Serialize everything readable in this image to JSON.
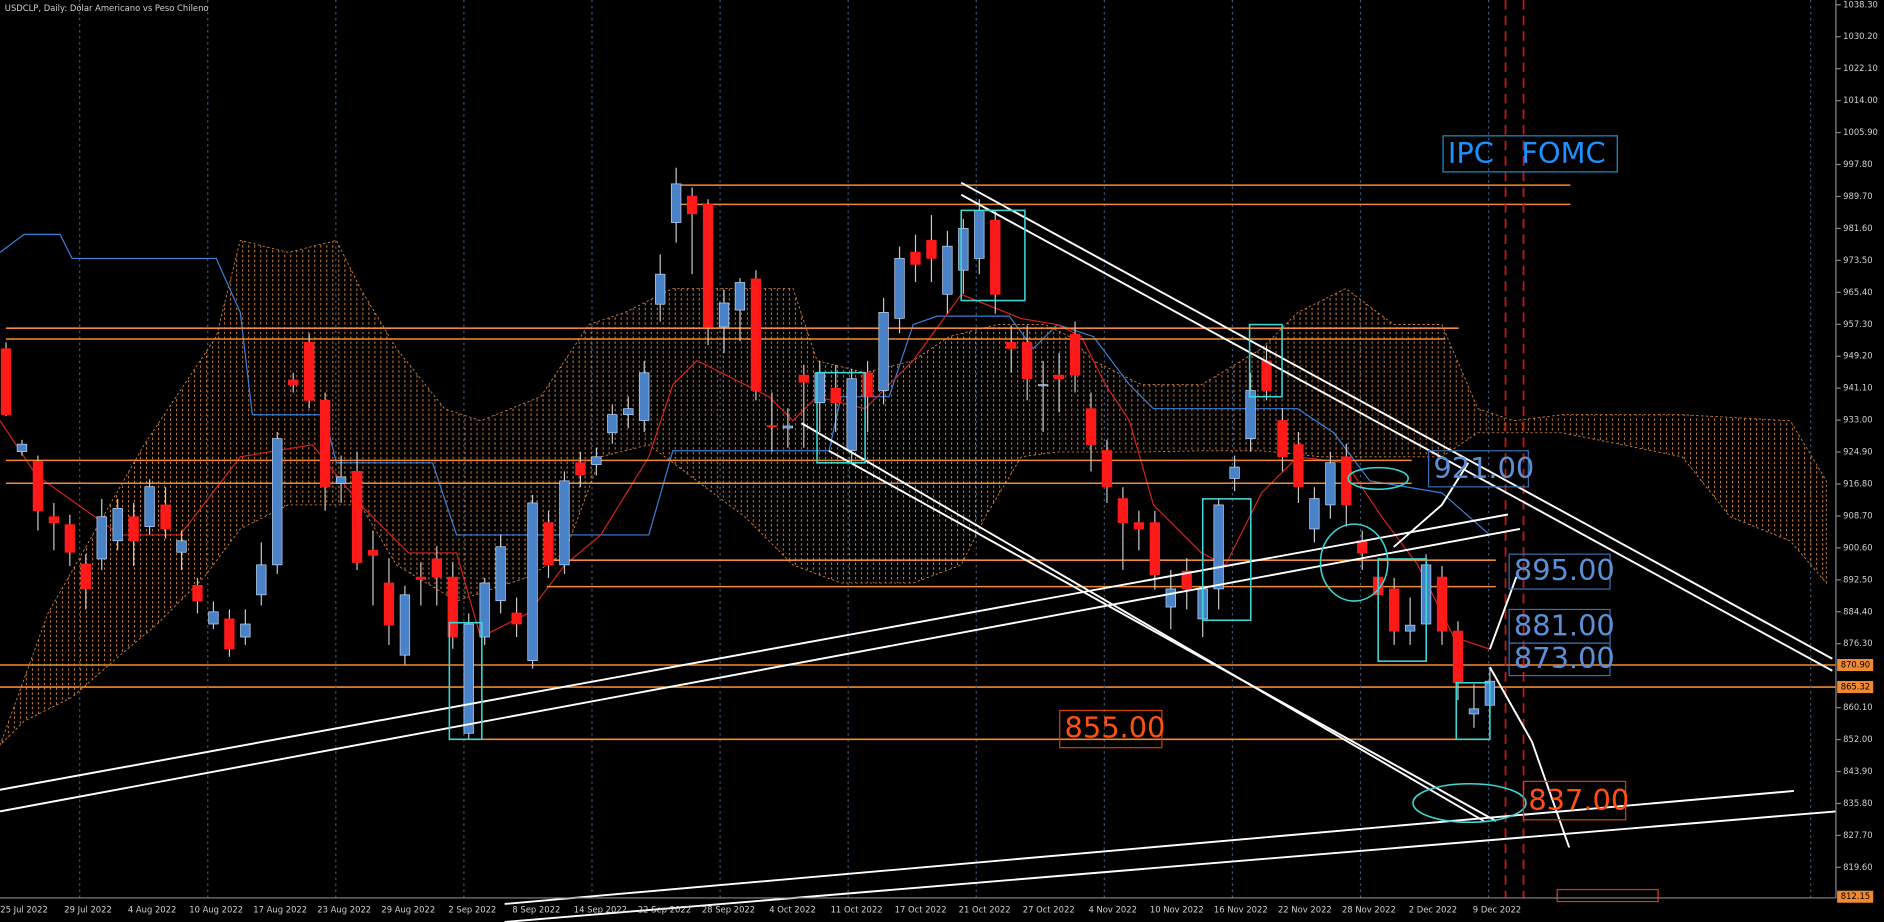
{
  "chart_data": {
    "type": "candlestick",
    "title": "USDCLP, Daily:  Dólar Americano vs Peso Chileno",
    "up_color": "#4a82c8",
    "down_color": "#ff1a1a",
    "ylim": [
      811.84,
      1039.52
    ],
    "yticks": [
      {
        "value": 1038.3,
        "label": "1038.30"
      },
      {
        "value": 1030.2,
        "label": "1030.20"
      },
      {
        "value": 1022.1,
        "label": "1022.10"
      },
      {
        "value": 1014,
        "label": "1014.00"
      },
      {
        "value": 1005.9,
        "label": "1005.90"
      },
      {
        "value": 997.8,
        "label": "997.80"
      },
      {
        "value": 989.7,
        "label": "989.70"
      },
      {
        "value": 981.6,
        "label": "981.60"
      },
      {
        "value": 973.5,
        "label": "973.50"
      },
      {
        "value": 965.4,
        "label": "965.40"
      },
      {
        "value": 957.3,
        "label": "957.30"
      },
      {
        "value": 949.2,
        "label": "949.20"
      },
      {
        "value": 941.1,
        "label": "941.10"
      },
      {
        "value": 933,
        "label": "933.00"
      },
      {
        "value": 924.9,
        "label": "924.90"
      },
      {
        "value": 916.8,
        "label": "916.80"
      },
      {
        "value": 908.7,
        "label": "908.70"
      },
      {
        "value": 900.6,
        "label": "900.60"
      },
      {
        "value": 892.5,
        "label": "892.50"
      },
      {
        "value": 884.4,
        "label": "884.40"
      },
      {
        "value": 876.3,
        "label": "876.30"
      },
      {
        "value": 860.1,
        "label": "860.10"
      },
      {
        "value": 852,
        "label": "852.00"
      },
      {
        "value": 843.9,
        "label": "843.90"
      },
      {
        "value": 835.8,
        "label": "835.80"
      },
      {
        "value": 827.7,
        "label": "827.70"
      },
      {
        "value": 819.6,
        "label": "819.60"
      }
    ],
    "price_markers": [
      {
        "value": 870.9,
        "label": "870.90"
      },
      865.32,
      812.15
    ],
    "x_labels": [
      "25 Jul 2022",
      "29 Jul 2022",
      "4 Aug 2022",
      "10 Aug 2022",
      "17 Aug 2022",
      "23 Aug 2022",
      "29 Aug 2022",
      "2 Sep 2022",
      "8 Sep 2022",
      "14 Sep 2022",
      "22 Sep 2022",
      "28 Sep 2022",
      "4 Oct 2022",
      "11 Oct 2022",
      "17 Oct 2022",
      "21 Oct 2022",
      "27 Oct 2022",
      "4 Nov 2022",
      "10 Nov 2022",
      "16 Nov 2022",
      "22 Nov 2022",
      "28 Nov 2022",
      "2 Dec 2022",
      "9 Dec 2022"
    ],
    "open": [
      951.1,
      925.0,
      922.5,
      908.5,
      906.5,
      896.5,
      897.8,
      902.4,
      908.5,
      906.0,
      911.5,
      899.5,
      891.1,
      881.3,
      882.6,
      878.0,
      888.7,
      896.3,
      943.2,
      952.7,
      938.0,
      917.0,
      920.0,
      900.0,
      891.7,
      873.4,
      893.2,
      897.8,
      893.2,
      853.6,
      878.0,
      887.2,
      884.1,
      872.0,
      907.0,
      896.3,
      922.2,
      921.7,
      929.8,
      934.4,
      932.9,
      962.4,
      983.1,
      989.8,
      987.7,
      956.6,
      960.9,
      968.8,
      931.6,
      931.0,
      944.4,
      937.4,
      941.1,
      925.3,
      945.0,
      940.5,
      958.8,
      975.6,
      978.6,
      964.9,
      971.0,
      974.0,
      983.7,
      952.7,
      952.7,
      942.0,
      944.4,
      954.8,
      935.9,
      925.3,
      913.1,
      907.0,
      907.0,
      885.6,
      894.7,
      882.6,
      890.2,
      918.2,
      928.3,
      948.0,
      932.9,
      926.8,
      905.4,
      911.5,
      923.7,
      902.4,
      893.2,
      890.2,
      879.5,
      881.3,
      893.2,
      879.5,
      858.5,
      860.7
    ],
    "high": [
      952.7,
      928,
      924,
      912,
      909,
      899,
      913,
      913,
      912,
      918,
      916,
      905,
      893,
      887,
      885,
      885,
      902,
      930,
      945,
      955,
      940,
      924,
      925,
      905,
      898,
      891,
      897,
      901,
      897,
      884,
      893,
      904,
      888,
      914,
      910,
      920,
      925,
      926,
      937,
      939,
      948,
      975,
      997,
      992,
      989,
      966,
      969,
      971,
      940,
      936,
      947,
      948,
      947,
      946,
      948,
      964,
      977,
      980,
      985,
      981,
      984,
      989,
      986,
      957,
      957,
      948,
      950,
      958,
      940,
      928,
      916,
      910,
      910,
      895,
      898,
      892,
      913,
      924,
      945,
      952,
      936,
      930,
      916,
      925,
      927,
      905,
      898,
      893,
      888,
      899,
      896,
      882,
      866,
      870
    ],
    "low": [
      934,
      924,
      905,
      900,
      896,
      885,
      895,
      900,
      896,
      904,
      903,
      895,
      884,
      880,
      873,
      876,
      886,
      894,
      940,
      936,
      910,
      912,
      895,
      886,
      876,
      871,
      886,
      886,
      875,
      852,
      876,
      884,
      878,
      870,
      893,
      894,
      916,
      919,
      927,
      931,
      930,
      958,
      978,
      970,
      952,
      950,
      953,
      938,
      925,
      926,
      926,
      930,
      930,
      922,
      930,
      937,
      955,
      968,
      968,
      960,
      965,
      970,
      960,
      945,
      938,
      930,
      935,
      940,
      920,
      912,
      895,
      900,
      890,
      880,
      885,
      878,
      885,
      915,
      925,
      938,
      920,
      912,
      902,
      908,
      906,
      895,
      884,
      876,
      876,
      876,
      876,
      862,
      855,
      858
    ],
    "close": [
      934.4,
      926.9,
      910.0,
      907.0,
      899.5,
      890.2,
      908.5,
      910.6,
      902.4,
      916.1,
      905.4,
      902.4,
      887.1,
      884.4,
      875.0,
      881.3,
      896.3,
      928.3,
      942.0,
      938.0,
      916.1,
      918.6,
      896.9,
      898.7,
      881.0,
      888.7,
      892.6,
      893.2,
      878.0,
      881.3,
      891.7,
      900.9,
      881.3,
      912.0,
      896.3,
      917.6,
      919.1,
      923.7,
      934.4,
      935.9,
      945.0,
      970.0,
      992.9,
      985.3,
      956.6,
      962.7,
      967.9,
      940.5,
      931.3,
      931.5,
      942.6,
      945.0,
      937.4,
      943.5,
      939.0,
      960.3,
      974.0,
      972.5,
      974.0,
      977.1,
      981.6,
      986.2,
      964.9,
      951.2,
      943.5,
      942.0,
      943.5,
      944.4,
      926.8,
      916.1,
      907.0,
      905.4,
      893.8,
      890.2,
      890.2,
      890.2,
      911.5,
      921.1,
      940.5,
      940.5,
      923.7,
      916.1,
      913.1,
      922.2,
      911.5,
      899.3,
      888.7,
      879.5,
      881.0,
      896.3,
      879.5,
      866.4,
      859.8,
      866.8
    ]
  },
  "annotations": {
    "event": "IPC   FOMC",
    "levels": [
      "921.00",
      "895.00",
      "881.00",
      "873.00",
      "855.00",
      "837.00"
    ]
  }
}
